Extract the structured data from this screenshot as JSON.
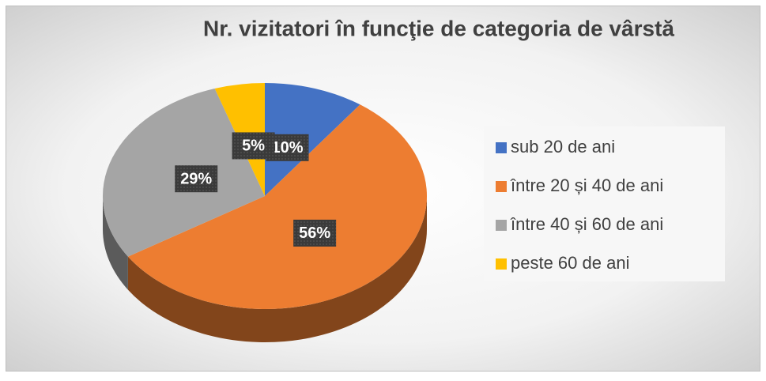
{
  "chart_data": {
    "type": "pie3d",
    "title": "Nr. vizitatori în funcţie de categoria de vârstă",
    "categories": [
      "sub 20 de ani",
      "între 20 și 40 de ani",
      "între 40 și 60 de ani",
      "peste 60 de ani"
    ],
    "values": [
      10,
      56,
      29,
      5
    ],
    "value_labels": [
      "10%",
      "56%",
      "29%",
      "5%"
    ],
    "colors": [
      "#4472c4",
      "#ed7d31",
      "#a5a5a5",
      "#ffc000"
    ],
    "legend": "right"
  }
}
